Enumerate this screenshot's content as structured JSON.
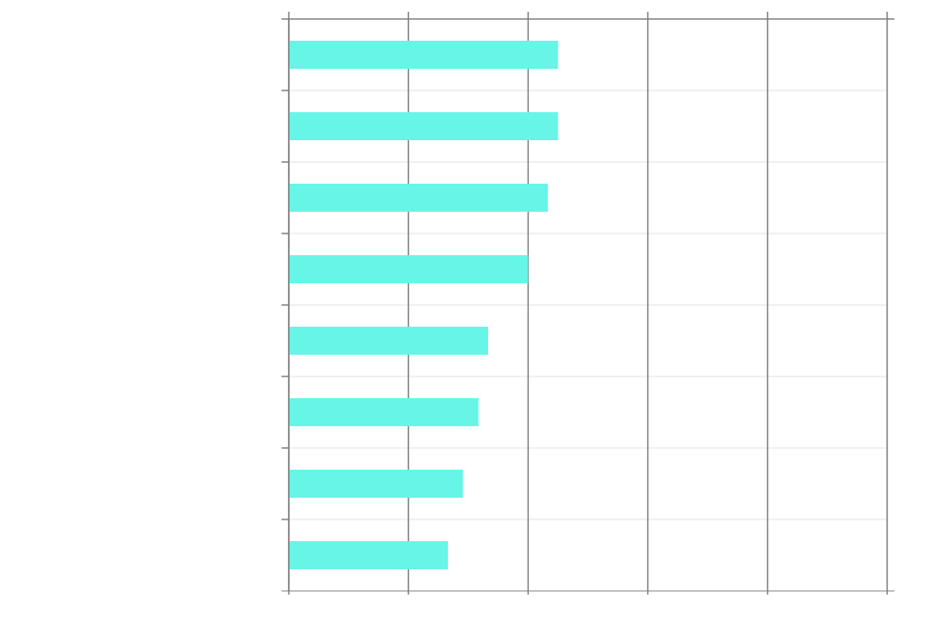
{
  "chart_data": {
    "type": "bar",
    "orientation": "horizontal",
    "categories": [
      "",
      "",
      "",
      "",
      "",
      "",
      "",
      ""
    ],
    "values": [
      45,
      45,
      43.3,
      40,
      33.3,
      31.7,
      29.1,
      26.6
    ],
    "xlim": [
      0,
      100
    ],
    "x_gridlines": [
      0,
      20,
      40,
      60,
      80,
      100
    ],
    "title": "",
    "xlabel": "",
    "ylabel": "",
    "grid": true,
    "bar_color": "#66f5e6",
    "axis_color": "#808080",
    "grid_color": "#e0e0e0"
  }
}
